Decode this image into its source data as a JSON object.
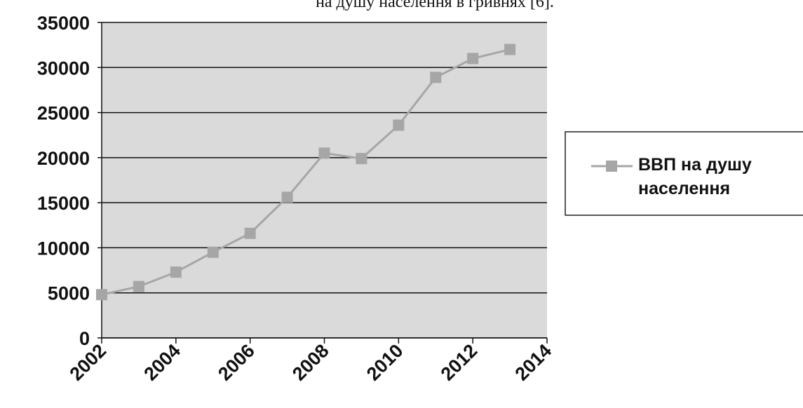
{
  "chart_data": {
    "type": "line",
    "title": "на душу населення в гривнях [6].",
    "x": [
      2002,
      2003,
      2004,
      2005,
      2006,
      2007,
      2008,
      2009,
      2010,
      2011,
      2012,
      2013
    ],
    "series": [
      {
        "name": "ВВП на душу населення",
        "color": "#a6a6a6",
        "values": [
          4800,
          5700,
          7300,
          9500,
          11600,
          15600,
          20500,
          19900,
          23600,
          28900,
          31000,
          32000
        ]
      }
    ],
    "xlim": [
      2002,
      2014
    ],
    "xticks": [
      2002,
      2004,
      2006,
      2008,
      2010,
      2012,
      2014
    ],
    "ylim": [
      0,
      35000
    ],
    "yticks": [
      0,
      5000,
      10000,
      15000,
      20000,
      25000,
      30000,
      35000
    ],
    "grid": true,
    "legend": "right"
  }
}
